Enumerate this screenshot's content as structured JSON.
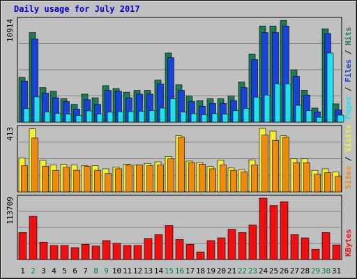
{
  "title": "Daily usage for July 2017",
  "colors": {
    "hits": "#1c7a55",
    "files": "#1744d8",
    "pages": "#22e0f0",
    "visits": "#f2f232",
    "sites": "#f08a0c",
    "kbytes": "#ee1010",
    "weekend_day": "#00805a",
    "weekday": "#000000",
    "title": "#0000cc"
  },
  "chart_data": [
    {
      "type": "bar",
      "title": "Daily usage for July 2017",
      "categories": [
        "1",
        "2",
        "3",
        "4",
        "5",
        "6",
        "7",
        "8",
        "9",
        "10",
        "11",
        "12",
        "13",
        "14",
        "15",
        "16",
        "17",
        "18",
        "19",
        "20",
        "21",
        "22",
        "23",
        "24",
        "25",
        "26",
        "27",
        "28",
        "29",
        "30",
        "31"
      ],
      "weekend_categories": [
        "2",
        "8",
        "9",
        "15",
        "16",
        "22",
        "23",
        "29",
        "30"
      ],
      "ymax_label": "10914",
      "ylim": [
        0,
        10914
      ],
      "legend": [
        "Pages",
        "Files",
        "Hits"
      ],
      "series": [
        {
          "name": "Hits",
          "values": [
            4800,
            9600,
            3700,
            3300,
            2500,
            1900,
            3000,
            2600,
            3900,
            3600,
            3200,
            3400,
            3400,
            4500,
            7400,
            4000,
            2800,
            2300,
            2500,
            2500,
            2800,
            4300,
            7300,
            10300,
            10300,
            10900,
            5600,
            3400,
            1500,
            10000,
            1950
          ]
        },
        {
          "name": "Files",
          "values": [
            4400,
            8900,
            3100,
            2600,
            2200,
            1400,
            2400,
            1900,
            3400,
            3300,
            2600,
            3000,
            3000,
            4100,
            6900,
            3400,
            2200,
            1700,
            2000,
            2000,
            2300,
            3700,
            6700,
            9600,
            9600,
            10300,
            4900,
            2900,
            1100,
            9500,
            1300
          ]
        },
        {
          "name": "Pages",
          "values": [
            1450,
            2700,
            1100,
            930,
            860,
            700,
            1200,
            850,
            1060,
            1120,
            1130,
            1160,
            1230,
            1500,
            2500,
            1070,
            900,
            800,
            900,
            840,
            1230,
            1470,
            2670,
            2900,
            4100,
            4100,
            1800,
            1230,
            520,
            7400,
            750
          ]
        }
      ]
    },
    {
      "type": "bar",
      "categories": [
        "1",
        "2",
        "3",
        "4",
        "5",
        "6",
        "7",
        "8",
        "9",
        "10",
        "11",
        "12",
        "13",
        "14",
        "15",
        "16",
        "17",
        "18",
        "19",
        "20",
        "21",
        "22",
        "23",
        "24",
        "25",
        "26",
        "27",
        "28",
        "29",
        "30",
        "31"
      ],
      "ymax_label": "413",
      "ylim": [
        0,
        413
      ],
      "legend": [
        "Sites",
        "Visits"
      ],
      "series": [
        {
          "name": "Visits",
          "values": [
            220,
            410,
            205,
            175,
            180,
            175,
            170,
            170,
            150,
            160,
            180,
            175,
            185,
            195,
            230,
            365,
            200,
            190,
            165,
            205,
            155,
            145,
            208,
            413,
            395,
            365,
            215,
            215,
            140,
            150,
            130
          ]
        },
        {
          "name": "Sites",
          "values": [
            170,
            350,
            165,
            140,
            160,
            140,
            165,
            140,
            120,
            150,
            175,
            175,
            170,
            175,
            215,
            355,
            190,
            180,
            150,
            175,
            140,
            130,
            175,
            370,
            335,
            355,
            190,
            190,
            115,
            125,
            100
          ]
        }
      ]
    },
    {
      "type": "bar",
      "categories": [
        "1",
        "2",
        "3",
        "4",
        "5",
        "6",
        "7",
        "8",
        "9",
        "10",
        "11",
        "12",
        "13",
        "14",
        "15",
        "16",
        "17",
        "18",
        "19",
        "20",
        "21",
        "22",
        "23",
        "24",
        "25",
        "26",
        "27",
        "28",
        "29",
        "30",
        "31"
      ],
      "ymax_label": "113709",
      "ylim": [
        0,
        113709
      ],
      "legend": [
        "KBytes"
      ],
      "series": [
        {
          "name": "KBytes",
          "values": [
            50000,
            80000,
            32000,
            26000,
            26000,
            22000,
            28000,
            25000,
            35000,
            30000,
            26000,
            26000,
            39000,
            46000,
            63000,
            37000,
            28000,
            14000,
            35000,
            40000,
            56000,
            50000,
            64000,
            113709,
            100000,
            107000,
            46000,
            40000,
            19000,
            50000,
            27000
          ]
        }
      ]
    }
  ]
}
